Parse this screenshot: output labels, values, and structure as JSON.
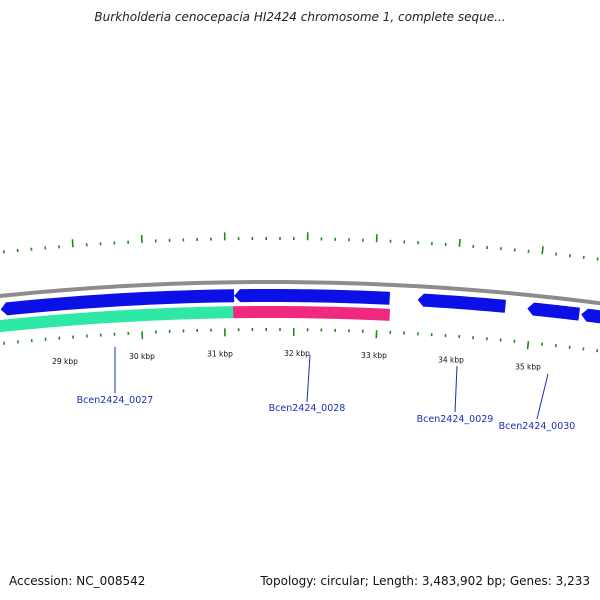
{
  "title": "Burkholderia cenocepacia HI2424 chromosome 1, complete seque...",
  "footer": {
    "accession": "Accession: NC_008542",
    "summary": "Topology: circular; Length: 3,483,902 bp; Genes: 3,233"
  },
  "colors": {
    "backbone": "#8c8c8c",
    "forward_gene": "#0a10e6",
    "reverse_gene_green": "#2ee8a6",
    "reverse_gene_pink": "#f0287e",
    "tick": "#1e8a1e",
    "label_line": "#1b2fb0"
  },
  "scale": {
    "labels": [
      "29 kbp",
      "30 kbp",
      "31 kbp",
      "32 kbp",
      "33 kbp",
      "34 kbp",
      "35 kbp"
    ]
  },
  "genes": [
    {
      "label": "Bcen2424_0027",
      "strand": "forward",
      "icon": "arrow-left"
    },
    {
      "label": "Bcen2424_0028",
      "strand": "forward",
      "icon": "arrow-left"
    },
    {
      "label": "Bcen2424_0029",
      "strand": "forward",
      "icon": "arrow-left"
    },
    {
      "label": "Bcen2424_0030",
      "strand": "forward",
      "icon": "arrow-left"
    }
  ]
}
